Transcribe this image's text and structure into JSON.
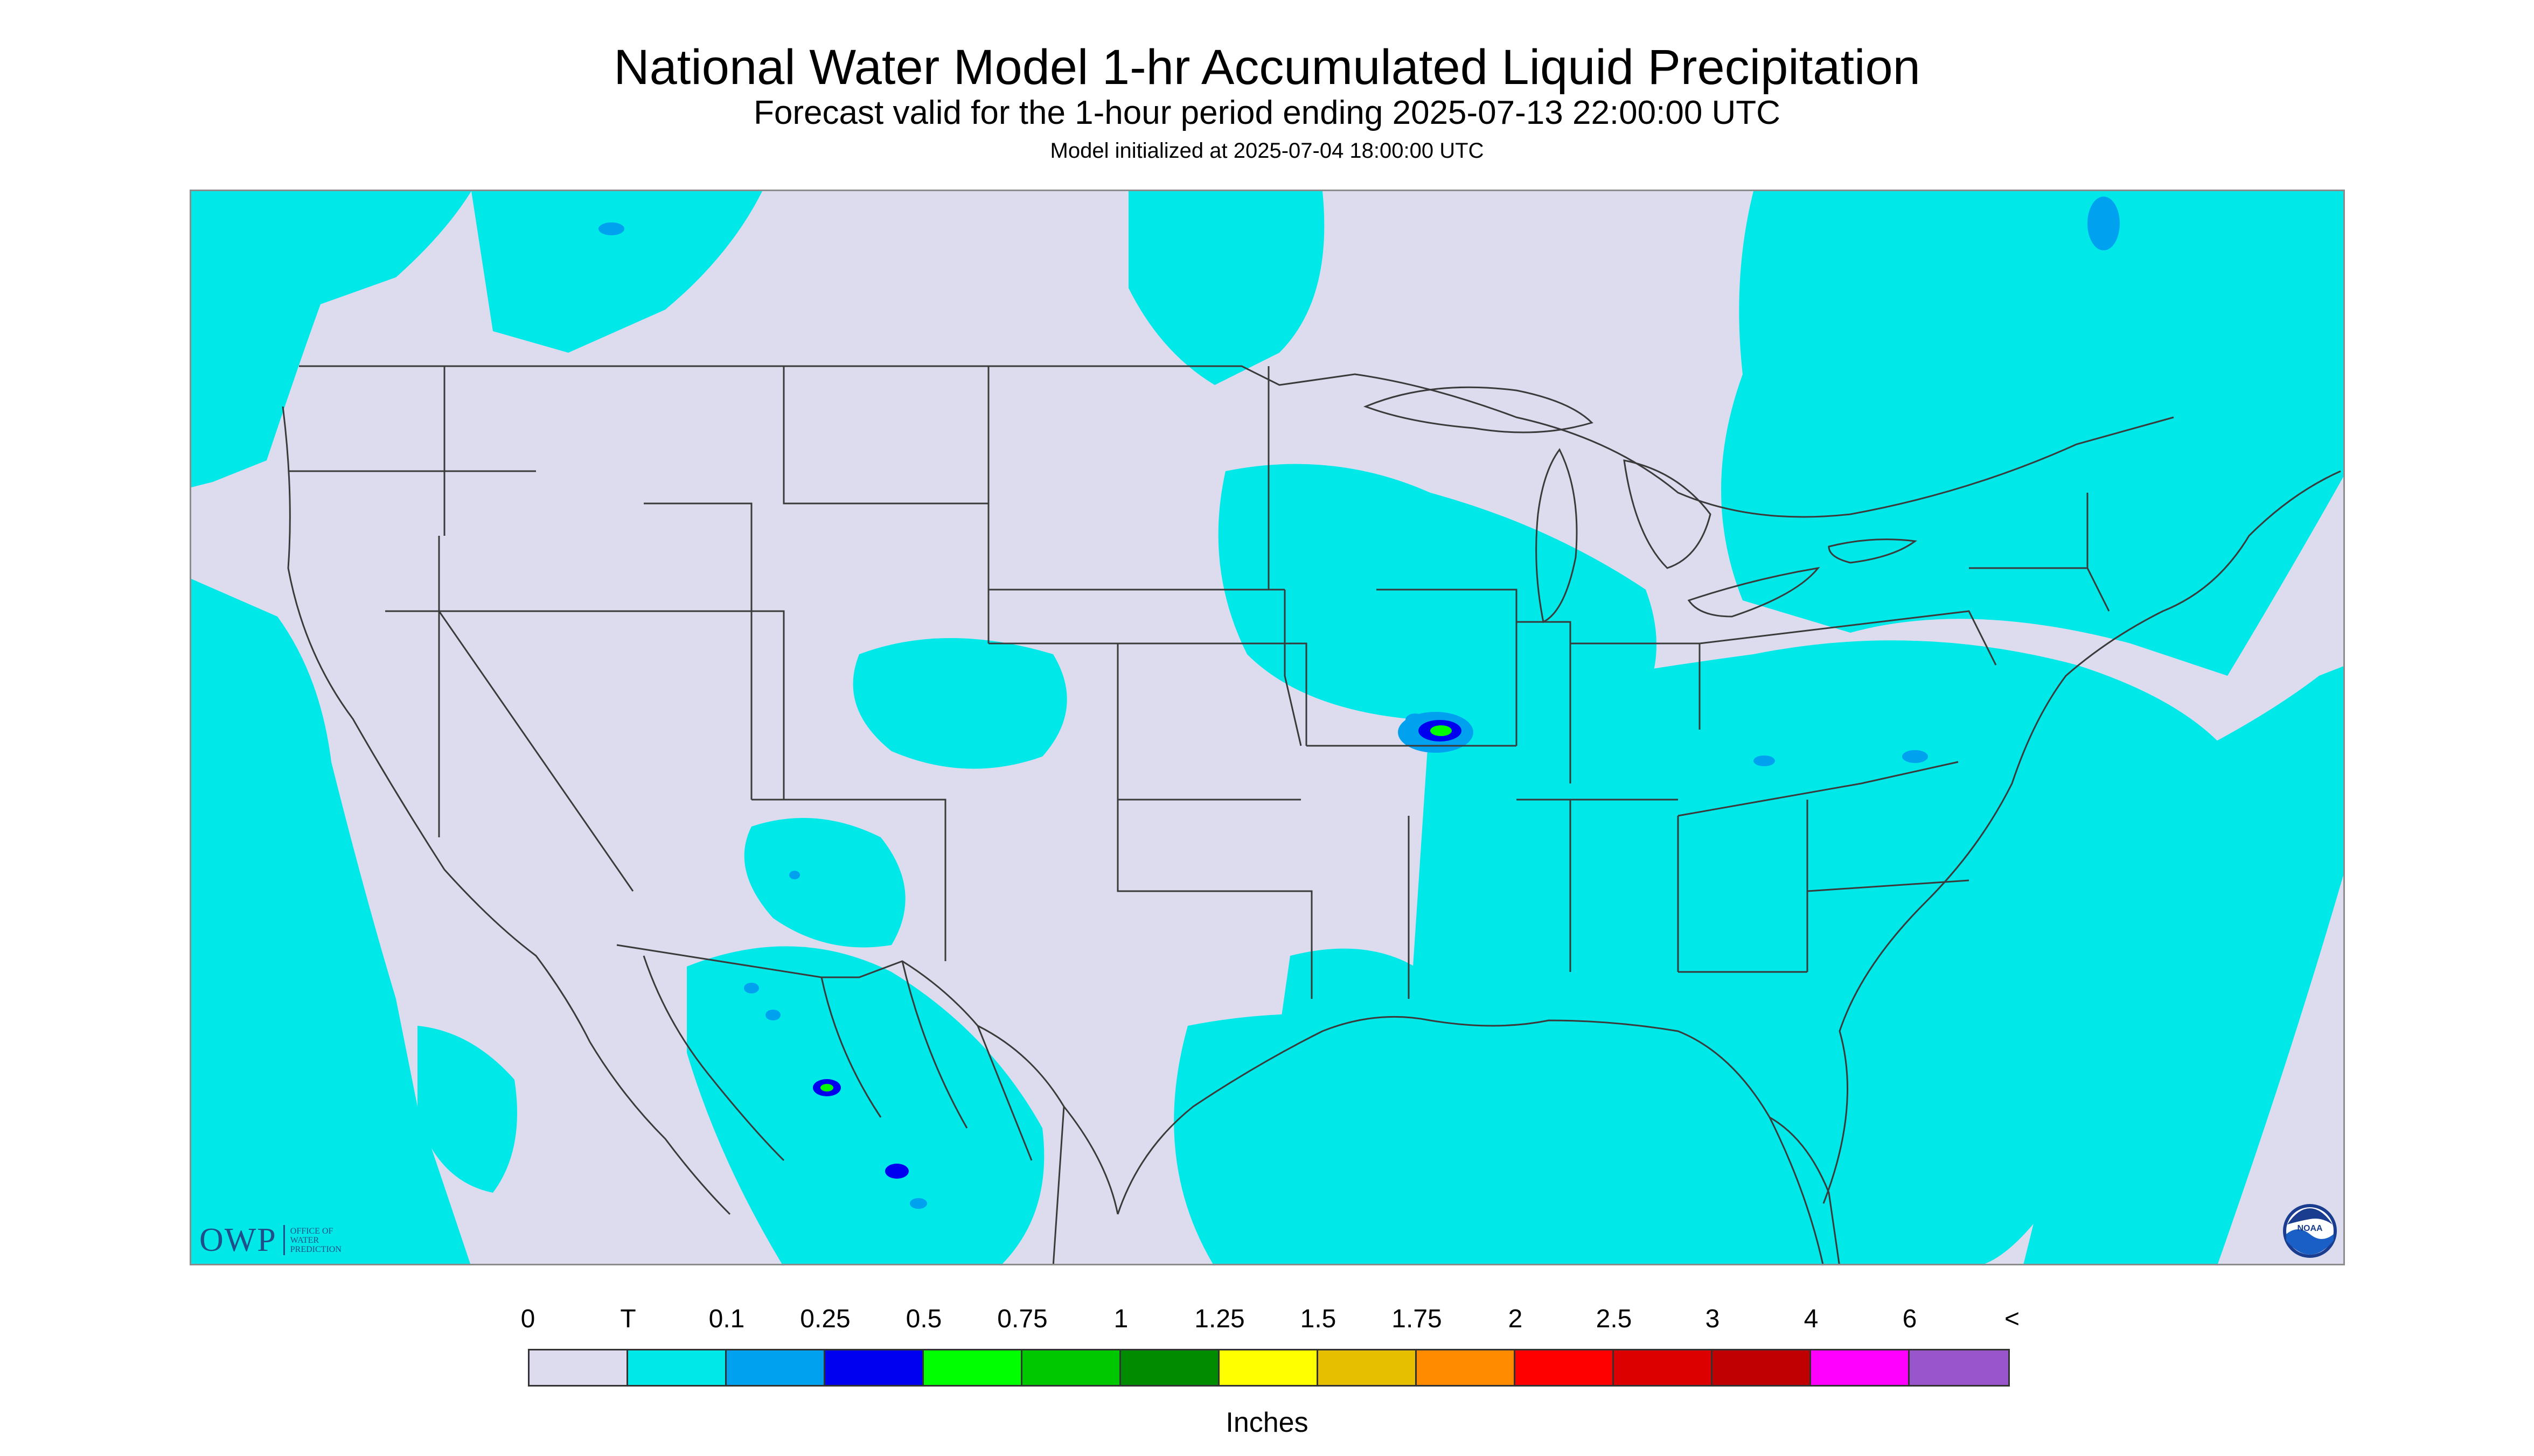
{
  "header": {
    "title": "National Water Model 1-hr Accumulated Liquid Precipitation",
    "subtitle": "Forecast valid for the 1-hour period ending 2025-07-13 22:00:00 UTC",
    "init": "Model initialized at 2025-07-04 18:00:00 UTC"
  },
  "map": {
    "region": "CONUS",
    "background_color": "#dcdcee",
    "precip_light_color": "#00e8e8",
    "precip_010_color": "#00a2f0",
    "precip_025_color": "#0000f0",
    "precip_05_color": "#00ff00",
    "boundary_color": "#3a3a3a"
  },
  "logos": {
    "owp_letters": "OWP",
    "owp_lines": [
      "OFFICE OF",
      "WATER",
      "PREDICTION"
    ],
    "noaa": "NOAA"
  },
  "legend": {
    "labels": [
      "0",
      "T",
      "0.1",
      "0.25",
      "0.5",
      "0.75",
      "1",
      "1.25",
      "1.5",
      "1.75",
      "2",
      "2.5",
      "3",
      "4",
      "6",
      "<"
    ],
    "colors": [
      "#dcdcee",
      "#00e8e8",
      "#00a2f0",
      "#0000f0",
      "#00ff00",
      "#00c800",
      "#008c00",
      "#ffff00",
      "#e6c000",
      "#ff8c00",
      "#ff0000",
      "#dc0000",
      "#c00000",
      "#ff00ff",
      "#9955cc"
    ],
    "units": "Inches"
  }
}
